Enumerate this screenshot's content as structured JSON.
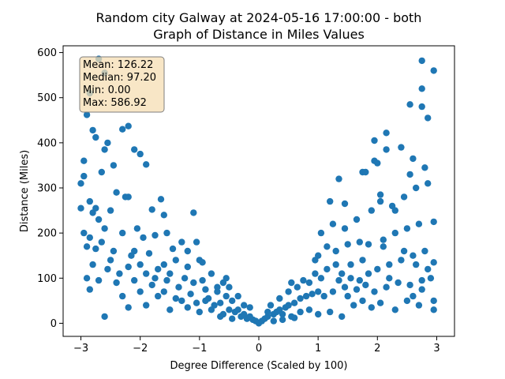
{
  "chart_data": {
    "type": "scatter",
    "title_line1": "Random city Galway at 2024-05-16 17:00:00  - both",
    "title_line2": "Graph of Distance in Miles Values",
    "xlabel": "Degree Difference (Scaled by 100)",
    "ylabel": "Distance (Miles)",
    "xlim": [
      -3.3,
      3.3
    ],
    "ylim": [
      -29,
      615
    ],
    "xticks": [
      -3,
      -2,
      -1,
      0,
      1,
      2,
      3
    ],
    "xtick_labels": [
      "−3",
      "−2",
      "−1",
      "0",
      "1",
      "2",
      "3"
    ],
    "yticks": [
      0,
      100,
      200,
      300,
      400,
      500,
      600
    ],
    "ytick_labels": [
      "0",
      "100",
      "200",
      "300",
      "400",
      "500",
      "600"
    ],
    "grid": false,
    "marker_color": "#1f77b4",
    "stats": {
      "mean": "Mean: 126.22",
      "median": "Median: 97.20",
      "min": "Min: 0.00",
      "max": "Max: 586.92"
    },
    "stats_box_color": "#f5deb3",
    "points": [
      [
        -2.7,
        586
      ],
      [
        -2.6,
        555
      ],
      [
        -2.85,
        510
      ],
      [
        -2.3,
        430
      ],
      [
        -2.2,
        437
      ],
      [
        -2.95,
        360
      ],
      [
        -2.8,
        428
      ],
      [
        -2.75,
        412
      ],
      [
        -2.55,
        400
      ],
      [
        -2.45,
        350
      ],
      [
        -2.9,
        462
      ],
      [
        -2.6,
        385
      ],
      [
        -2.1,
        385
      ],
      [
        -2.0,
        375
      ],
      [
        -1.9,
        352
      ],
      [
        -2.65,
        335
      ],
      [
        -2.95,
        326
      ],
      [
        -3.0,
        310
      ],
      [
        -2.4,
        290
      ],
      [
        -2.2,
        280
      ],
      [
        -1.65,
        275
      ],
      [
        -2.5,
        250
      ],
      [
        -2.85,
        270
      ],
      [
        -3.0,
        255
      ],
      [
        -2.8,
        245
      ],
      [
        -2.7,
        230
      ],
      [
        -2.25,
        280
      ],
      [
        -1.8,
        252
      ],
      [
        -1.6,
        240
      ],
      [
        -1.1,
        245
      ],
      [
        -2.95,
        200
      ],
      [
        -2.85,
        190
      ],
      [
        -2.6,
        210
      ],
      [
        -2.3,
        200
      ],
      [
        -2.05,
        210
      ],
      [
        -1.95,
        190
      ],
      [
        -1.75,
        195
      ],
      [
        -1.55,
        200
      ],
      [
        -1.3,
        180
      ],
      [
        -1.2,
        160
      ],
      [
        -2.9,
        170
      ],
      [
        -2.75,
        165
      ],
      [
        -2.45,
        160
      ],
      [
        -2.15,
        150
      ],
      [
        -1.85,
        155
      ],
      [
        -1.45,
        165
      ],
      [
        -1.0,
        140
      ],
      [
        -0.95,
        135
      ],
      [
        -2.8,
        130
      ],
      [
        -2.5,
        140
      ],
      [
        -2.2,
        125
      ],
      [
        -2.0,
        130
      ],
      [
        -1.7,
        120
      ],
      [
        -1.5,
        110
      ],
      [
        -1.2,
        125
      ],
      [
        -0.8,
        110
      ],
      [
        -0.55,
        100
      ],
      [
        -2.9,
        100
      ],
      [
        -2.7,
        95
      ],
      [
        -2.4,
        90
      ],
      [
        -2.1,
        95
      ],
      [
        -1.8,
        85
      ],
      [
        -1.55,
        95
      ],
      [
        -1.35,
        80
      ],
      [
        -1.1,
        90
      ],
      [
        -0.9,
        75
      ],
      [
        -0.7,
        70
      ],
      [
        -0.5,
        80
      ],
      [
        -0.35,
        60
      ],
      [
        -2.85,
        75
      ],
      [
        -2.3,
        60
      ],
      [
        -2.0,
        70
      ],
      [
        -1.7,
        60
      ],
      [
        -1.4,
        55
      ],
      [
        -1.15,
        65
      ],
      [
        -0.85,
        55
      ],
      [
        -0.65,
        45
      ],
      [
        -0.45,
        50
      ],
      [
        -0.25,
        40
      ],
      [
        -0.15,
        35
      ],
      [
        -2.6,
        15
      ],
      [
        -2.2,
        35
      ],
      [
        -1.9,
        40
      ],
      [
        -1.5,
        30
      ],
      [
        -1.2,
        35
      ],
      [
        -1.0,
        25
      ],
      [
        -0.8,
        30
      ],
      [
        -0.6,
        20
      ],
      [
        -0.4,
        25
      ],
      [
        -0.3,
        15
      ],
      [
        -0.2,
        10
      ],
      [
        -0.1,
        8
      ],
      [
        -0.05,
        5
      ],
      [
        0.0,
        0
      ],
      [
        -0.6,
        90
      ],
      [
        -0.75,
        40
      ],
      [
        -0.5,
        30
      ],
      [
        -0.9,
        50
      ],
      [
        -1.05,
        45
      ],
      [
        -1.3,
        50
      ],
      [
        -0.35,
        30
      ],
      [
        -0.25,
        20
      ],
      [
        -0.15,
        15
      ],
      [
        -0.45,
        10
      ],
      [
        -0.65,
        15
      ],
      [
        -1.6,
        70
      ],
      [
        -1.75,
        100
      ],
      [
        -2.35,
        110
      ],
      [
        -2.55,
        120
      ],
      [
        -1.25,
        100
      ],
      [
        -0.95,
        95
      ],
      [
        -0.7,
        80
      ],
      [
        -0.55,
        60
      ],
      [
        -1.4,
        140
      ],
      [
        -1.05,
        180
      ],
      [
        -1.6,
        130
      ],
      [
        -1.9,
        110
      ],
      [
        -2.1,
        160
      ],
      [
        -2.65,
        180
      ],
      [
        -2.75,
        255
      ],
      [
        0.05,
        5
      ],
      [
        0.1,
        10
      ],
      [
        0.15,
        15
      ],
      [
        0.25,
        20
      ],
      [
        0.3,
        25
      ],
      [
        0.35,
        30
      ],
      [
        0.45,
        35
      ],
      [
        0.5,
        40
      ],
      [
        0.6,
        45
      ],
      [
        0.7,
        55
      ],
      [
        0.8,
        60
      ],
      [
        0.9,
        65
      ],
      [
        1.0,
        70
      ],
      [
        0.2,
        40
      ],
      [
        0.35,
        55
      ],
      [
        0.5,
        70
      ],
      [
        0.65,
        80
      ],
      [
        0.75,
        95
      ],
      [
        0.85,
        90
      ],
      [
        0.95,
        110
      ],
      [
        1.05,
        100
      ],
      [
        1.15,
        120
      ],
      [
        1.3,
        130
      ],
      [
        1.4,
        110
      ],
      [
        1.55,
        100
      ],
      [
        1.7,
        95
      ],
      [
        1.85,
        110
      ],
      [
        2.0,
        120
      ],
      [
        2.2,
        130
      ],
      [
        2.4,
        140
      ],
      [
        2.6,
        150
      ],
      [
        2.8,
        160
      ],
      [
        2.95,
        135
      ],
      [
        0.4,
        20
      ],
      [
        0.55,
        15
      ],
      [
        0.7,
        25
      ],
      [
        0.85,
        30
      ],
      [
        1.0,
        20
      ],
      [
        1.2,
        25
      ],
      [
        1.4,
        15
      ],
      [
        1.6,
        40
      ],
      [
        1.75,
        50
      ],
      [
        1.9,
        35
      ],
      [
        2.05,
        45
      ],
      [
        2.3,
        30
      ],
      [
        2.5,
        50
      ],
      [
        2.7,
        40
      ],
      [
        2.95,
        30
      ],
      [
        1.1,
        60
      ],
      [
        1.25,
        70
      ],
      [
        1.45,
        80
      ],
      [
        1.65,
        75
      ],
      [
        1.8,
        85
      ],
      [
        1.95,
        70
      ],
      [
        2.15,
        80
      ],
      [
        2.35,
        90
      ],
      [
        2.55,
        85
      ],
      [
        2.75,
        95
      ],
      [
        2.9,
        100
      ],
      [
        1.0,
        150
      ],
      [
        1.15,
        170
      ],
      [
        1.3,
        160
      ],
      [
        1.5,
        175
      ],
      [
        1.7,
        180
      ],
      [
        1.85,
        175
      ],
      [
        2.1,
        185
      ],
      [
        2.3,
        200
      ],
      [
        2.5,
        210
      ],
      [
        2.7,
        220
      ],
      [
        2.95,
        225
      ],
      [
        1.05,
        200
      ],
      [
        1.25,
        220
      ],
      [
        1.45,
        210
      ],
      [
        1.65,
        230
      ],
      [
        1.9,
        250
      ],
      [
        2.05,
        270
      ],
      [
        2.25,
        260
      ],
      [
        2.45,
        280
      ],
      [
        2.65,
        300
      ],
      [
        2.85,
        310
      ],
      [
        1.2,
        270
      ],
      [
        1.45,
        265
      ],
      [
        1.75,
        335
      ],
      [
        1.95,
        360
      ],
      [
        2.15,
        385
      ],
      [
        2.4,
        390
      ],
      [
        2.6,
        365
      ],
      [
        2.8,
        345
      ],
      [
        1.95,
        405
      ],
      [
        2.15,
        422
      ],
      [
        2.55,
        485
      ],
      [
        2.75,
        480
      ],
      [
        2.85,
        455
      ],
      [
        2.75,
        520
      ],
      [
        2.95,
        560
      ],
      [
        2.75,
        582
      ],
      [
        1.35,
        320
      ],
      [
        1.8,
        335
      ],
      [
        2.05,
        285
      ],
      [
        2.55,
        330
      ],
      [
        2.3,
        250
      ],
      [
        2.1,
        170
      ],
      [
        2.45,
        160
      ],
      [
        2.65,
        130
      ],
      [
        2.85,
        120
      ],
      [
        1.35,
        95
      ],
      [
        1.5,
        60
      ],
      [
        1.75,
        140
      ],
      [
        0.95,
        140
      ],
      [
        0.55,
        90
      ],
      [
        2.0,
        355
      ],
      [
        1.55,
        130
      ],
      [
        2.2,
        100
      ],
      [
        2.6,
        60
      ],
      [
        2.75,
        75
      ],
      [
        2.95,
        50
      ],
      [
        0.25,
        5
      ],
      [
        0.4,
        8
      ],
      [
        0.6,
        12
      ],
      [
        0.15,
        25
      ]
    ]
  }
}
